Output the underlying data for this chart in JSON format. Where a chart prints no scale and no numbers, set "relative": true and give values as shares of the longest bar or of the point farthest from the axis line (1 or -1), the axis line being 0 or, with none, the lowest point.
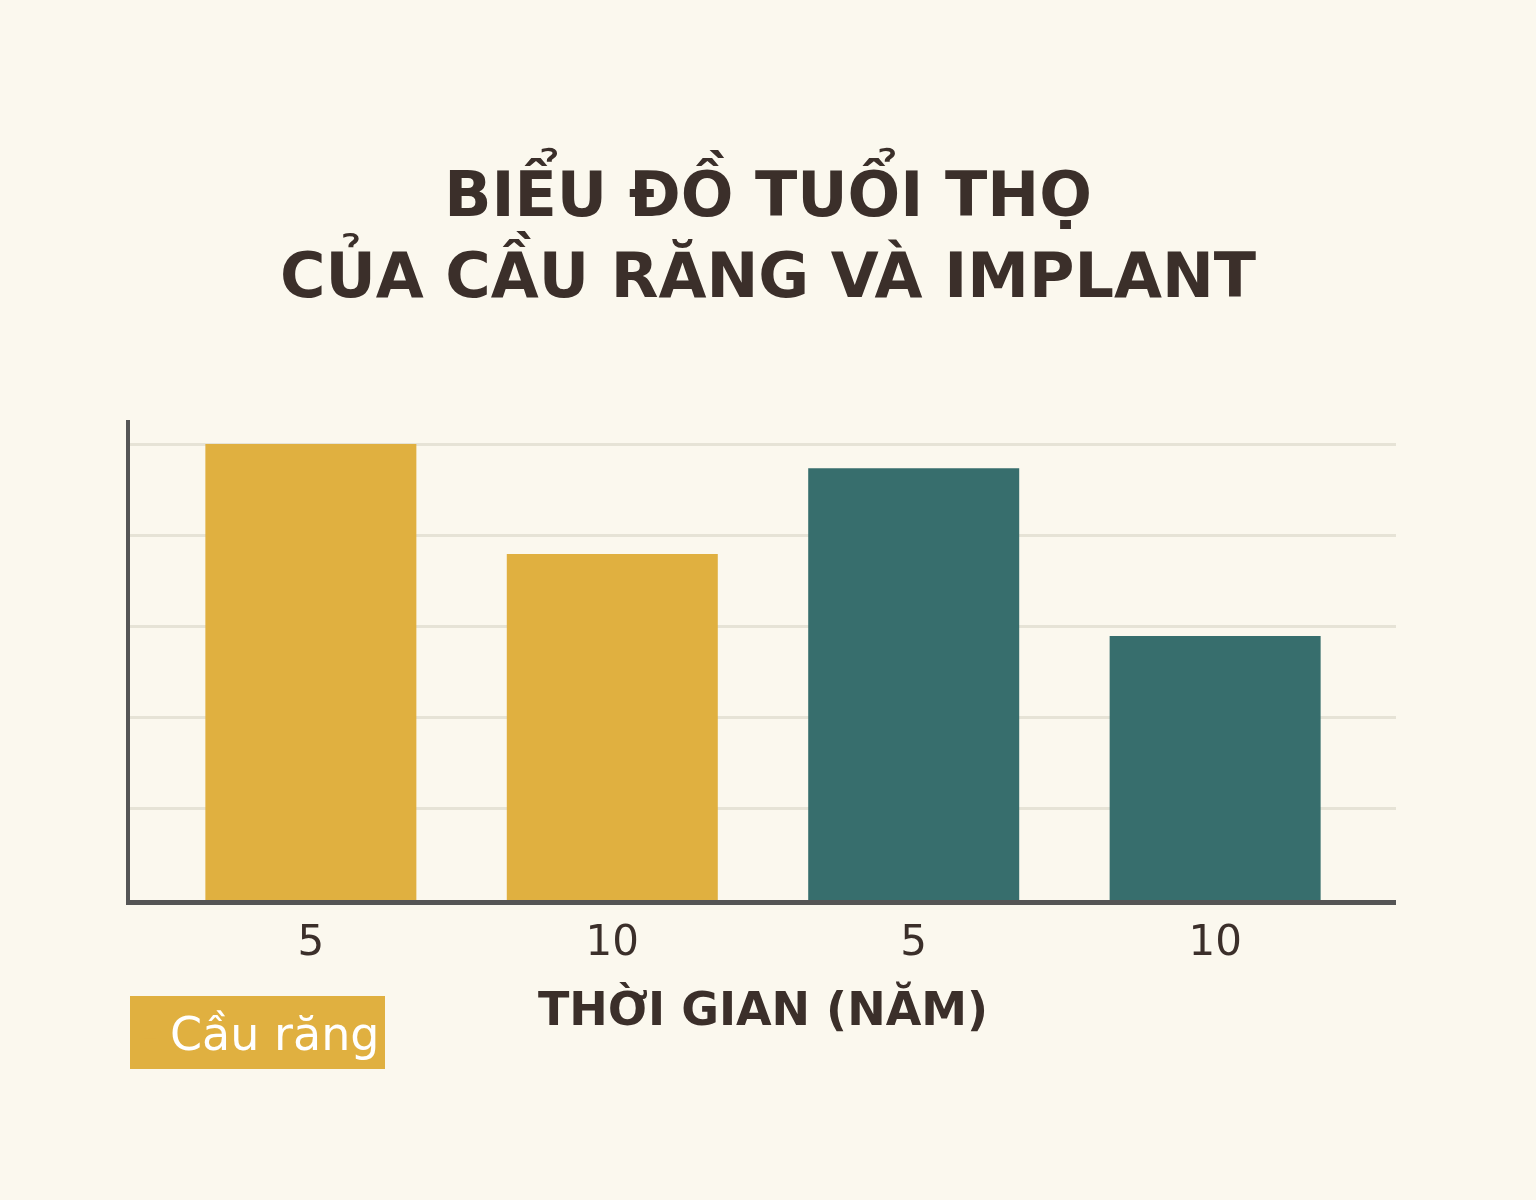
{
  "chart_data": {
    "type": "bar",
    "title": "BIỂU ĐỒ TUỔI THỌ\nCỦA CẦU RĂNG VÀ IMPLANT",
    "xlabel": "THỜI GIAN (NĂM)",
    "categories": [
      "5",
      "10",
      "5",
      "10"
    ],
    "relative": true,
    "grid": "y",
    "legend": "bottom left",
    "series": [
      {
        "name": "Cầu răng",
        "color": "#e0b040",
        "values": [
          1,
          0.759,
          null,
          null
        ]
      },
      {
        "color": "#376e6d",
        "values": [
          null,
          null,
          0.947,
          0.579
        ]
      }
    ]
  }
}
